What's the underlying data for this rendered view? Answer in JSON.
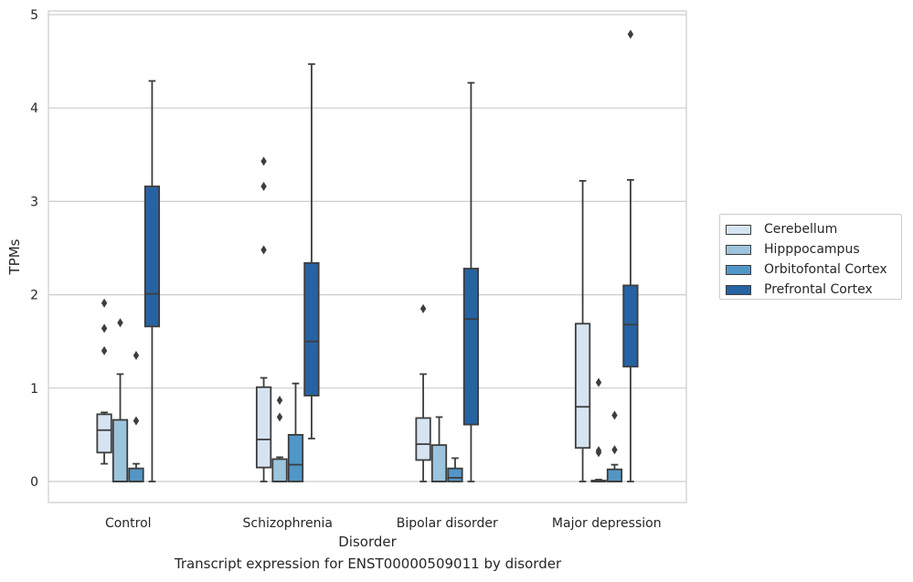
{
  "chart_data": {
    "type": "box",
    "xlabel": "Disorder",
    "ylabel": "TPMs",
    "ylim": [
      -0.23,
      5.05
    ],
    "yticks": [
      0,
      1,
      2,
      3,
      4,
      5
    ],
    "grid": true,
    "legend_position": "right",
    "categories": [
      "Control",
      "Schizophrenia",
      "Bipolar disorder",
      "Major depression"
    ],
    "series": [
      {
        "name": "Cerebellum",
        "color": "#d6e4f2",
        "boxes": [
          {
            "whislo": 0.19,
            "q1": 0.31,
            "med": 0.55,
            "q3": 0.72,
            "whishi": 0.74,
            "fliers": [
              1.91,
              1.64,
              1.4
            ]
          },
          {
            "whislo": 0.0,
            "q1": 0.15,
            "med": 0.45,
            "q3": 1.01,
            "whishi": 1.11,
            "fliers": [
              3.43,
              3.16,
              2.48
            ]
          },
          {
            "whislo": 0.0,
            "q1": 0.23,
            "med": 0.4,
            "q3": 0.68,
            "whishi": 1.15,
            "fliers": [
              1.85
            ]
          },
          {
            "whislo": 0.0,
            "q1": 0.36,
            "med": 0.8,
            "q3": 1.69,
            "whishi": 3.22,
            "fliers": []
          }
        ]
      },
      {
        "name": "Hipppocampus",
        "color": "#9dc4dd",
        "boxes": [
          {
            "whislo": 0.0,
            "q1": 0.0,
            "med": 0.0,
            "q3": 0.66,
            "whishi": 1.15,
            "fliers": [
              1.7
            ]
          },
          {
            "whislo": 0.0,
            "q1": 0.0,
            "med": 0.0,
            "q3": 0.24,
            "whishi": 0.26,
            "fliers": [
              0.87,
              0.69
            ]
          },
          {
            "whislo": 0.0,
            "q1": 0.0,
            "med": 0.0,
            "q3": 0.39,
            "whishi": 0.69,
            "fliers": []
          },
          {
            "whislo": 0.0,
            "q1": 0.0,
            "med": 0.0,
            "q3": 0.01,
            "whishi": 0.02,
            "fliers": [
              1.06,
              0.33,
              0.31
            ]
          }
        ]
      },
      {
        "name": "Orbitofontal Cortex",
        "color": "#5296c7",
        "boxes": [
          {
            "whislo": 0.0,
            "q1": 0.0,
            "med": 0.0,
            "q3": 0.14,
            "whishi": 0.19,
            "fliers": [
              1.35,
              0.65
            ]
          },
          {
            "whislo": 0.0,
            "q1": 0.0,
            "med": 0.18,
            "q3": 0.5,
            "whishi": 1.05,
            "fliers": []
          },
          {
            "whislo": 0.0,
            "q1": 0.0,
            "med": 0.04,
            "q3": 0.14,
            "whishi": 0.25,
            "fliers": []
          },
          {
            "whislo": 0.0,
            "q1": 0.0,
            "med": 0.0,
            "q3": 0.13,
            "whishi": 0.18,
            "fliers": [
              0.71,
              0.34
            ]
          }
        ]
      },
      {
        "name": "Prefrontal Cortex",
        "color": "#2763a2",
        "boxes": [
          {
            "whislo": 0.0,
            "q1": 1.66,
            "med": 2.01,
            "q3": 3.16,
            "whishi": 4.29,
            "fliers": []
          },
          {
            "whislo": 0.46,
            "q1": 0.92,
            "med": 1.5,
            "q3": 2.34,
            "whishi": 4.47,
            "fliers": []
          },
          {
            "whislo": 0.0,
            "q1": 0.61,
            "med": 1.74,
            "q3": 2.28,
            "whishi": 4.27,
            "fliers": []
          },
          {
            "whislo": 0.0,
            "q1": 1.23,
            "med": 1.68,
            "q3": 2.1,
            "whishi": 3.23,
            "fliers": [
              4.79
            ]
          }
        ]
      }
    ]
  },
  "caption": "Transcript expression for ENST00000509011 by disorder"
}
